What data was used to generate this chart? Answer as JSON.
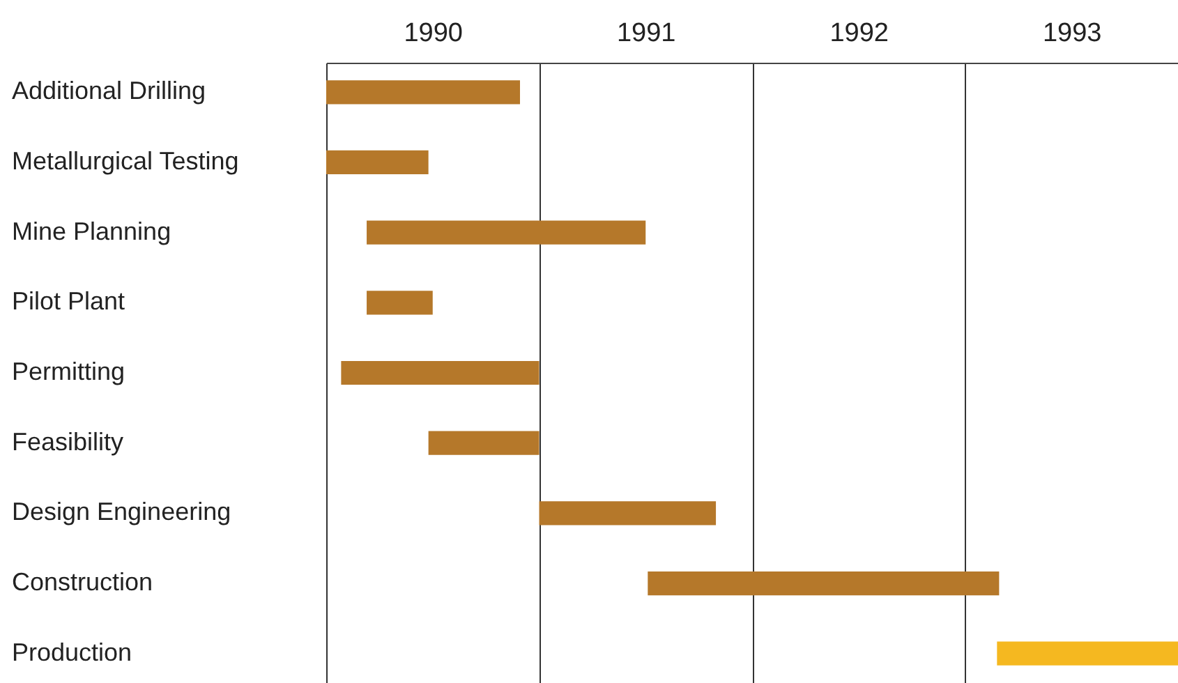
{
  "chart_data": {
    "type": "bar",
    "orientation": "horizontal",
    "categories": [
      "Additional Drilling",
      "Metallurgical Testing",
      "Mine Planning",
      "Pilot Plant",
      "Permitting",
      "Feasibility",
      "Design Engineering",
      "Construction",
      "Production"
    ],
    "base": [
      1990,
      1990,
      1990.19,
      1990.19,
      1990.07,
      1990.48,
      1991,
      1991.51,
      1993.15
    ],
    "values": [
      0.91,
      0.48,
      1.31,
      0.31,
      0.93,
      0.52,
      0.83,
      1.65,
      0.85
    ],
    "colors": [
      "#b5782a",
      "#b5782a",
      "#b5782a",
      "#b5782a",
      "#b5782a",
      "#b5782a",
      "#b5782a",
      "#b5782a",
      "#f5b820"
    ],
    "xlim": [
      1990,
      1994
    ],
    "xticks": [
      {
        "value": 1990,
        "label": null
      },
      {
        "value": 1990.5,
        "label": "1990"
      },
      {
        "value": 1991,
        "label": null
      },
      {
        "value": 1991.5,
        "label": "1991"
      },
      {
        "value": 1992,
        "label": null
      },
      {
        "value": 1992.5,
        "label": "1992"
      },
      {
        "value": 1993,
        "label": null
      },
      {
        "value": 1993.5,
        "label": "1993"
      }
    ],
    "grid": "x"
  }
}
